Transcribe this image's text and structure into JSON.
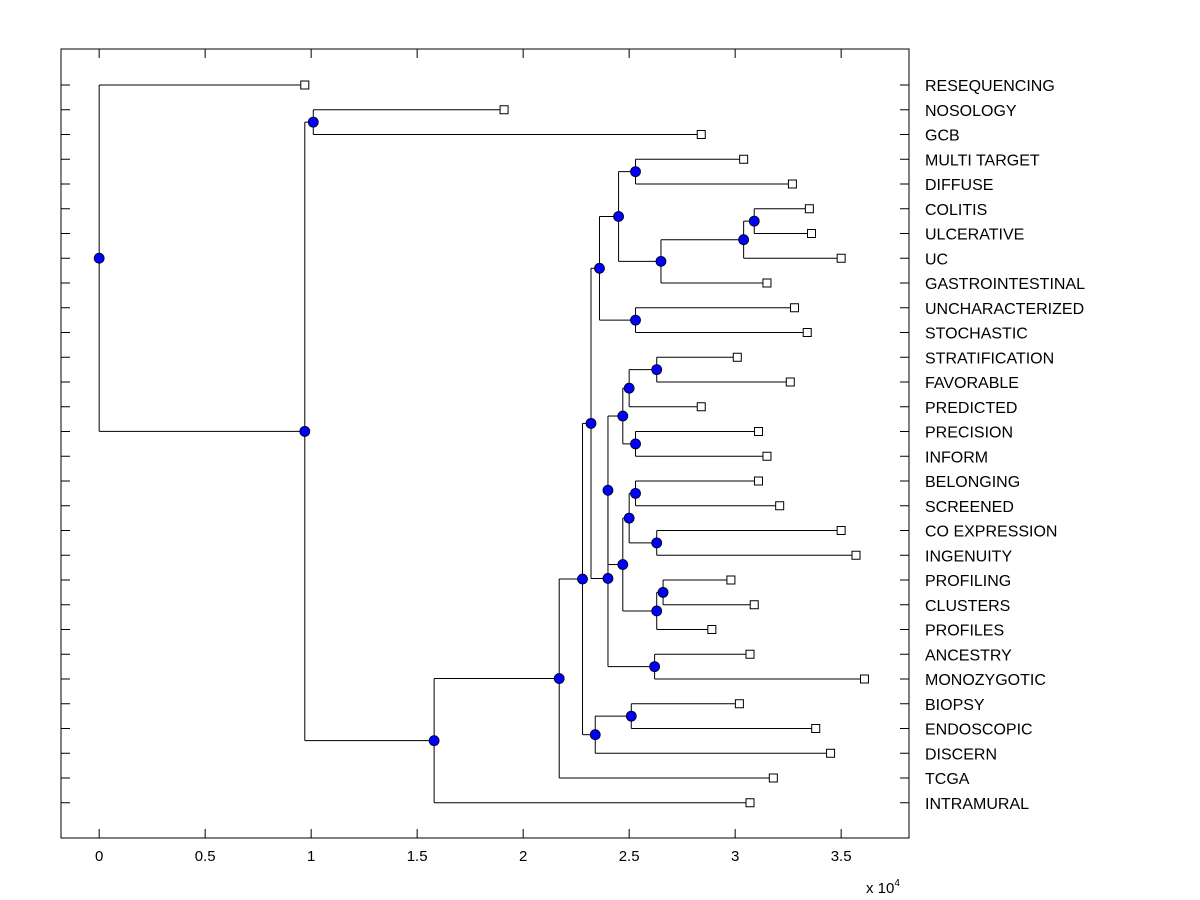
{
  "chart_data": {
    "type": "dendrogram",
    "orientation": "left-to-right",
    "xlim": [
      -0.18,
      3.82
    ],
    "xticks": [
      0,
      0.5,
      1,
      1.5,
      2,
      2.5,
      3,
      3.5
    ],
    "xtick_labels": [
      "0",
      "0.5",
      "1",
      "1.5",
      "2",
      "2.5",
      "3",
      "3.5"
    ],
    "x_multiplier_base": "x 10",
    "x_multiplier_exp": "4",
    "colors": {
      "node": "#0000ff",
      "line": "#000000",
      "leaf": "#ffffff"
    },
    "leaves": [
      {
        "label": "RESEQUENCING",
        "x": 0.97
      },
      {
        "label": "NOSOLOGY",
        "x": 1.91
      },
      {
        "label": "GCB",
        "x": 2.84
      },
      {
        "label": "MULTI TARGET",
        "x": 3.04
      },
      {
        "label": "DIFFUSE",
        "x": 3.27
      },
      {
        "label": "COLITIS",
        "x": 3.35
      },
      {
        "label": "ULCERATIVE",
        "x": 3.36
      },
      {
        "label": "UC",
        "x": 3.5
      },
      {
        "label": "GASTROINTESTINAL",
        "x": 3.15
      },
      {
        "label": "UNCHARACTERIZED",
        "x": 3.28
      },
      {
        "label": "STOCHASTIC",
        "x": 3.34
      },
      {
        "label": "STRATIFICATION",
        "x": 3.01
      },
      {
        "label": "FAVORABLE",
        "x": 3.26
      },
      {
        "label": "PREDICTED",
        "x": 2.84
      },
      {
        "label": "PRECISION",
        "x": 3.11
      },
      {
        "label": "INFORM",
        "x": 3.15
      },
      {
        "label": "BELONGING",
        "x": 3.11
      },
      {
        "label": "SCREENED",
        "x": 3.21
      },
      {
        "label": "CO EXPRESSION",
        "x": 3.5
      },
      {
        "label": "INGENUITY",
        "x": 3.57
      },
      {
        "label": "PROFILING",
        "x": 2.98
      },
      {
        "label": "CLUSTERS",
        "x": 3.09
      },
      {
        "label": "PROFILES",
        "x": 2.89
      },
      {
        "label": "ANCESTRY",
        "x": 3.07
      },
      {
        "label": "MONOZYGOTIC",
        "x": 3.61
      },
      {
        "label": "BIOPSY",
        "x": 3.02
      },
      {
        "label": "ENDOSCOPIC",
        "x": 3.38
      },
      {
        "label": "DISCERN",
        "x": 3.45
      },
      {
        "label": "TCGA",
        "x": 3.18
      },
      {
        "label": "INTRAMURAL",
        "x": 3.07
      }
    ],
    "nodes": [
      {
        "id": "n1",
        "x": 3.09,
        "children": [
          "L5",
          "L6"
        ]
      },
      {
        "id": "n2",
        "x": 3.04,
        "children": [
          "n1",
          "L7"
        ]
      },
      {
        "id": "n3",
        "x": 2.65,
        "children": [
          "n2",
          "L8"
        ]
      },
      {
        "id": "n4",
        "x": 2.53,
        "children": [
          "L3",
          "L4"
        ]
      },
      {
        "id": "n5",
        "x": 2.45,
        "children": [
          "n4",
          "n3"
        ]
      },
      {
        "id": "n6",
        "x": 2.53,
        "children": [
          "L9",
          "L10"
        ]
      },
      {
        "id": "n7",
        "x": 2.36,
        "children": [
          "n5",
          "n6"
        ]
      },
      {
        "id": "n8",
        "x": 2.63,
        "children": [
          "L11",
          "L12"
        ]
      },
      {
        "id": "n9",
        "x": 2.5,
        "children": [
          "n8",
          "L13"
        ]
      },
      {
        "id": "n10",
        "x": 2.53,
        "children": [
          "L14",
          "L15"
        ]
      },
      {
        "id": "n11",
        "x": 2.47,
        "children": [
          "n9",
          "n10"
        ]
      },
      {
        "id": "n12",
        "x": 2.53,
        "children": [
          "L16",
          "L17"
        ]
      },
      {
        "id": "n13",
        "x": 2.63,
        "children": [
          "L18",
          "L19"
        ]
      },
      {
        "id": "n14",
        "x": 2.5,
        "children": [
          "n12",
          "n13"
        ]
      },
      {
        "id": "n15",
        "x": 2.66,
        "children": [
          "L20",
          "L21"
        ]
      },
      {
        "id": "n16",
        "x": 2.63,
        "children": [
          "n15",
          "L22"
        ]
      },
      {
        "id": "n17",
        "x": 2.47,
        "children": [
          "n14",
          "n16"
        ]
      },
      {
        "id": "n18",
        "x": 2.4,
        "children": [
          "n11",
          "n17"
        ]
      },
      {
        "id": "n19",
        "x": 2.62,
        "children": [
          "L23",
          "L24"
        ]
      },
      {
        "id": "n20",
        "x": 2.4,
        "children": [
          "n18",
          "n19"
        ]
      },
      {
        "id": "n21",
        "x": 2.32,
        "children": [
          "n7",
          "n20"
        ]
      },
      {
        "id": "n22",
        "x": 2.51,
        "children": [
          "L25",
          "L26"
        ]
      },
      {
        "id": "n23",
        "x": 2.34,
        "children": [
          "n22",
          "L27"
        ]
      },
      {
        "id": "n24",
        "x": 2.28,
        "children": [
          "n21",
          "n23"
        ]
      },
      {
        "id": "n25",
        "x": 2.17,
        "children": [
          "n24",
          "L28"
        ]
      },
      {
        "id": "n26",
        "x": 1.58,
        "children": [
          "n25",
          "L29"
        ]
      },
      {
        "id": "n27",
        "x": 1.01,
        "children": [
          "L1",
          "L2"
        ]
      },
      {
        "id": "n28",
        "x": 0.97,
        "children": [
          "n27",
          "n26"
        ]
      },
      {
        "id": "n29",
        "x": 0.0,
        "children": [
          "L0",
          "n28"
        ]
      }
    ]
  }
}
